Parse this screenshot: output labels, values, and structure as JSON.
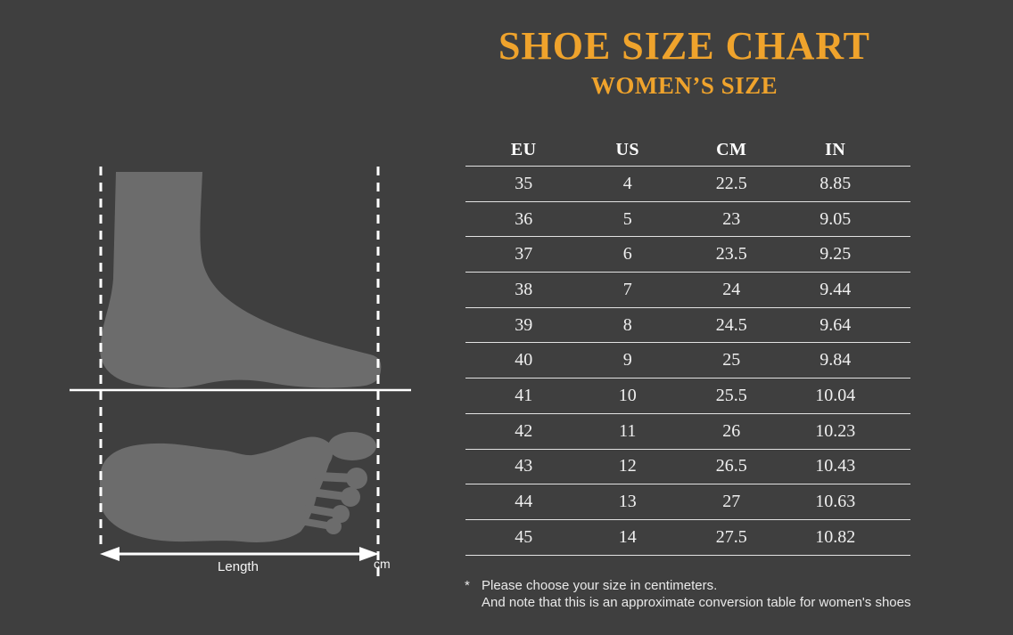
{
  "page": {
    "background": "#3F3F3F",
    "accent": "#EFA32C"
  },
  "header": {
    "title": "SHOE SIZE CHART",
    "subtitle": "WOMEN’S SIZE"
  },
  "figure": {
    "length_label": "Length",
    "unit_label": "cm",
    "silhouette_color": "#6C6C6C",
    "line_color": "#FFFFFF"
  },
  "chart_data": {
    "type": "table",
    "title": "SHOE SIZE CHART",
    "subtitle": "WOMEN’S SIZE",
    "columns": [
      "EU",
      "US",
      "CM",
      "IN"
    ],
    "rows": [
      [
        35,
        4,
        22.5,
        8.85
      ],
      [
        36,
        5,
        23,
        9.05
      ],
      [
        37,
        6,
        23.5,
        9.25
      ],
      [
        38,
        7,
        24,
        9.44
      ],
      [
        39,
        8,
        24.5,
        9.64
      ],
      [
        40,
        9,
        25,
        9.84
      ],
      [
        41,
        10,
        25.5,
        10.04
      ],
      [
        42,
        11,
        26,
        10.23
      ],
      [
        43,
        12,
        26.5,
        10.43
      ],
      [
        44,
        13,
        27,
        10.63
      ],
      [
        45,
        14,
        27.5,
        10.82
      ]
    ]
  },
  "footnote": {
    "marker": "*",
    "line1": "Please choose your size in centimeters.",
    "line2": "And note that this is an approximate conversion table for women's shoes"
  }
}
